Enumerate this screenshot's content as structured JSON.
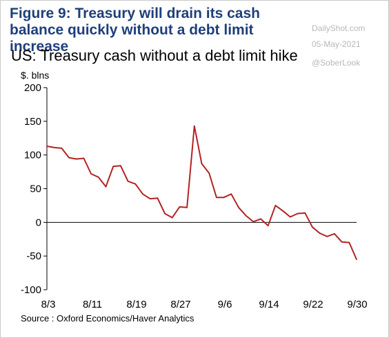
{
  "figure_title": "Figure 9: Treasury will drain its cash balance quickly without a debt limit increase",
  "watermark": {
    "site": "DailyShot.com",
    "date": "05-May-2021",
    "handle": "@SoberLook"
  },
  "source": "Source : Oxford Economics/Haver Analytics",
  "chart_data": {
    "type": "line",
    "title": "US: Treasury cash without a debt limit hike",
    "ylabel": "$. blns",
    "xlabel": "",
    "ylim": [
      -100,
      200
    ],
    "yticks": [
      200,
      150,
      100,
      50,
      0,
      -50,
      -100
    ],
    "xtick_labels": [
      "8/3",
      "8/11",
      "8/19",
      "8/27",
      "9/6",
      "9/14",
      "9/22",
      "9/30"
    ],
    "grid": false,
    "line_color": "#b22222",
    "series": [
      {
        "values": [
          113,
          111,
          110,
          96,
          94,
          95,
          72,
          67,
          53,
          83,
          84,
          61,
          57,
          42,
          35,
          36,
          13,
          7,
          23,
          22,
          143,
          87,
          73,
          37,
          37,
          42,
          22,
          10,
          1,
          5,
          -5,
          25,
          17,
          8,
          13,
          14,
          -7,
          -16,
          -21,
          -17,
          -29,
          -30,
          -55
        ]
      }
    ]
  }
}
